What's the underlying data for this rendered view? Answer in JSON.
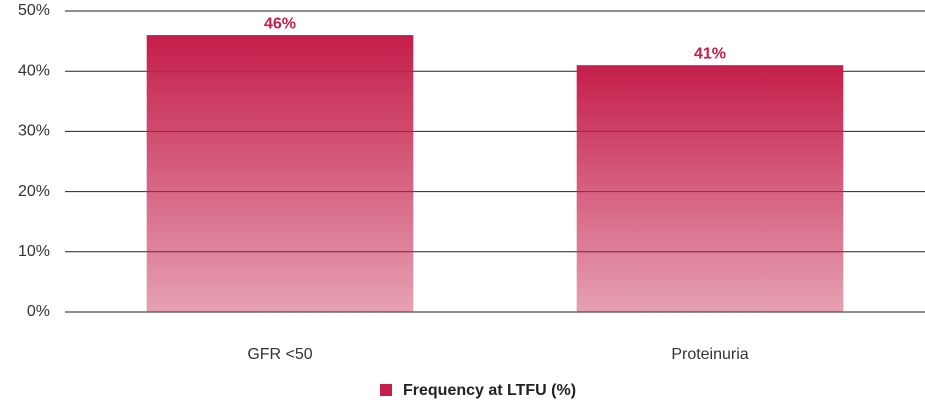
{
  "chart_data": {
    "type": "bar",
    "categories": [
      "GFR <50",
      "Proteinuria"
    ],
    "series": [
      {
        "name": "Frequency at LTFU (%)",
        "color": "#c41e4a",
        "values": [
          46,
          41
        ],
        "value_labels": [
          "46%",
          "41%"
        ]
      }
    ],
    "ylim": [
      0,
      50
    ],
    "yticks": [
      {
        "value": 0,
        "label": "0%"
      },
      {
        "value": 10,
        "label": "10%"
      },
      {
        "value": 20,
        "label": "20%"
      },
      {
        "value": 30,
        "label": "30%"
      },
      {
        "value": 40,
        "label": "40%"
      },
      {
        "value": 50,
        "label": "50%"
      }
    ],
    "grid": true
  }
}
